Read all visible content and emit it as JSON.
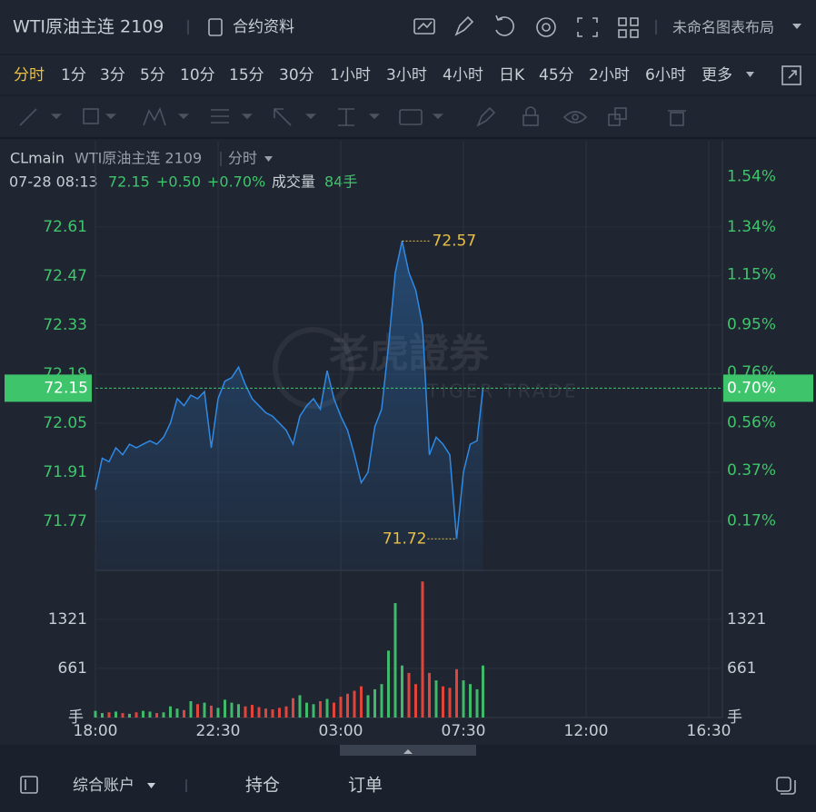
{
  "header": {
    "title": "WTI原油主连 2109",
    "info": "合约资料",
    "layout": "未命名图表布局"
  },
  "timeframes": [
    "分时",
    "1分",
    "3分",
    "5分",
    "10分",
    "15分",
    "30分",
    "1小时",
    "3小时",
    "4小时",
    "日K",
    "45分",
    "2小时",
    "6小时",
    "更多"
  ],
  "chart_data": {
    "type": "line",
    "symbol": "CLmain",
    "name": "WTI原油主连 2109",
    "period": "分时",
    "quote": {
      "time": "07-28 08:13",
      "price": 72.15,
      "change": "+0.50",
      "change_pct": "+0.70%",
      "volume_label": "成交量",
      "volume": "84手"
    },
    "watermark": {
      "cn": "老虎證券",
      "en": "TIGER TRADE"
    },
    "x": [
      "18:00",
      "18:15",
      "18:30",
      "18:45",
      "19:00",
      "19:15",
      "19:30",
      "19:45",
      "20:00",
      "20:15",
      "20:30",
      "20:45",
      "21:00",
      "21:15",
      "21:30",
      "21:45",
      "22:00",
      "22:15",
      "22:30",
      "22:45",
      "23:00",
      "23:15",
      "23:30",
      "23:45",
      "00:00",
      "00:15",
      "00:30",
      "00:45",
      "01:00",
      "01:15",
      "01:30",
      "01:45",
      "02:00",
      "02:15",
      "02:30",
      "02:45",
      "03:00",
      "03:15",
      "03:30",
      "03:45",
      "04:00",
      "04:15",
      "04:30",
      "04:45",
      "05:00",
      "05:15",
      "05:30",
      "05:45",
      "06:00",
      "06:15",
      "06:30",
      "06:45",
      "07:00",
      "07:15",
      "07:30",
      "07:45",
      "08:00",
      "08:13"
    ],
    "series": [
      {
        "color": "#2f8ae6",
        "values": [
          71.86,
          71.95,
          71.94,
          71.98,
          71.96,
          71.99,
          71.98,
          71.99,
          72.0,
          71.99,
          72.01,
          72.05,
          72.12,
          72.1,
          72.13,
          72.12,
          72.14,
          71.98,
          72.12,
          72.17,
          72.18,
          72.21,
          72.16,
          72.12,
          72.1,
          72.08,
          72.07,
          72.05,
          72.03,
          71.99,
          72.07,
          72.1,
          72.12,
          72.09,
          72.2,
          72.12,
          72.07,
          72.03,
          71.96,
          71.88,
          71.91,
          72.04,
          72.09,
          72.27,
          72.48,
          72.57,
          72.48,
          72.43,
          72.33,
          71.96,
          72.01,
          71.99,
          71.96,
          71.72,
          71.91,
          71.99,
          72.0,
          72.15
        ]
      }
    ],
    "xlim": [
      "18:00",
      "17:00"
    ],
    "xticks": [
      "18:00",
      "22:30",
      "03:00",
      "07:30",
      "12:00",
      "16:30"
    ],
    "ylim": [
      71.63,
      72.856
    ],
    "yticks": [
      72.61,
      72.47,
      72.33,
      72.19,
      72.05,
      71.91,
      71.77
    ],
    "y2lim": [
      -0.028,
      1.683
    ],
    "y2ticks": [
      {
        "value": 1.54,
        "label": "1.54%"
      },
      {
        "value": 1.34,
        "label": "1.34%"
      },
      {
        "value": 1.15,
        "label": "1.15%"
      },
      {
        "value": 0.95,
        "label": "0.95%"
      },
      {
        "value": 0.76,
        "label": "0.76%"
      },
      {
        "value": 0.56,
        "label": "0.56%"
      },
      {
        "value": 0.37,
        "label": "0.37%"
      },
      {
        "value": 0.17,
        "label": "0.17%"
      }
    ],
    "current_pct": {
      "value": 0.7,
      "label": "0.70%"
    },
    "high": 72.57,
    "low": 71.72,
    "grid": true,
    "volume": {
      "values": [
        90,
        60,
        70,
        80,
        60,
        50,
        70,
        90,
        80,
        60,
        70,
        150,
        120,
        100,
        220,
        180,
        200,
        160,
        130,
        240,
        200,
        180,
        150,
        170,
        140,
        120,
        110,
        130,
        150,
        260,
        300,
        200,
        180,
        220,
        250,
        200,
        280,
        320,
        360,
        420,
        300,
        380,
        450,
        900,
        1540,
        700,
        600,
        450,
        1830,
        600,
        500,
        420,
        400,
        650,
        500,
        450,
        380,
        700
      ],
      "ylim": [
        0,
        1955
      ],
      "yticks": [
        1321,
        661
      ],
      "unit": "手",
      "up_color": "#3fb96a",
      "down_color": "#e0453b"
    }
  },
  "footer": {
    "account": "综合账户",
    "positions": "持仓",
    "orders": "订单"
  }
}
